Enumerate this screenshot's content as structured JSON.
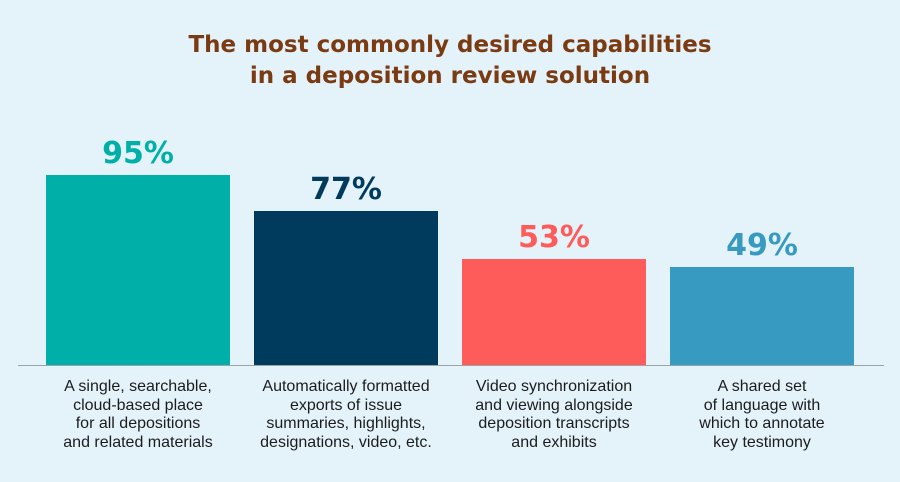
{
  "chart_data": {
    "type": "bar",
    "title_lines": [
      "The most commonly desired capabilities",
      "in a deposition review solution"
    ],
    "categories": [
      [
        "A single, searchable,",
        "cloud-based place",
        "for all depositions",
        "and related materials"
      ],
      [
        "Automatically formatted",
        "exports of issue",
        "summaries, highlights,",
        "designations, video, etc."
      ],
      [
        "Video synchronization",
        "and viewing alongside",
        "deposition transcripts",
        "and exhibits"
      ],
      [
        "A shared set",
        "of language with",
        "which to annotate",
        "key testimony"
      ]
    ],
    "values": [
      95,
      77,
      53,
      49
    ],
    "value_labels": [
      "95%",
      "77%",
      "53%",
      "49%"
    ],
    "colors": [
      "#00b0a8",
      "#003a5d",
      "#fe5b5b",
      "#379ac0"
    ],
    "ylim": [
      0,
      100
    ],
    "grid": false,
    "legend": "none"
  }
}
